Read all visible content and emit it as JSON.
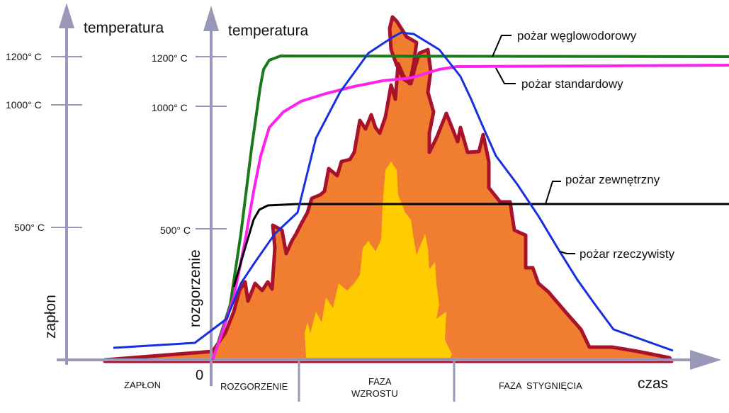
{
  "axes": {
    "left_y_label": "temperatura",
    "right_y_label": "temperatura",
    "x_label": "czas",
    "origin_label": "0",
    "ticks": [
      "1200° C",
      "1000° C",
      "500° C"
    ]
  },
  "side_labels": {
    "ignition": "zapłon",
    "flashover": "rozgorzenie"
  },
  "phases": [
    "ZAPŁON",
    "ROZGORZENIE",
    "FAZA WZROSTU",
    "FAZA  STYGNIĘCIA"
  ],
  "phase_lines": {
    "growth": [
      "FAZA",
      "WZROSTU"
    ]
  },
  "legend": {
    "hydrocarbon": "pożar węglowodorowy",
    "standard": "pożar standardowy",
    "external": "pożar zewnętrzny",
    "real": "pożar rzeczywisty"
  },
  "colors": {
    "axis": "#9a98b8",
    "hydrocarbon": "#1a7a1a",
    "standard": "#ff22ee",
    "external": "#000000",
    "real": "#1530e0",
    "flame_outer": "#f07d30",
    "flame_outline": "#a8122a",
    "flame_inner": "#ffcc00"
  }
}
